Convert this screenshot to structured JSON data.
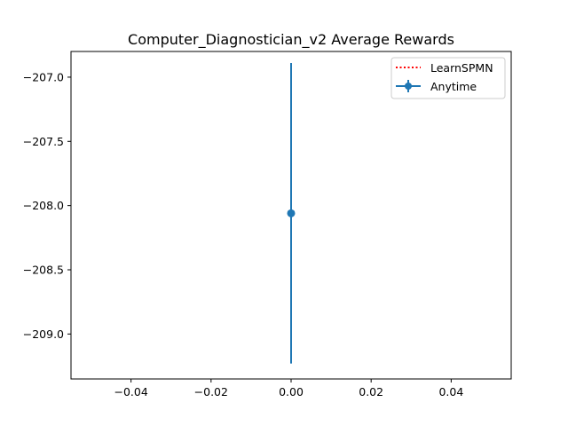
{
  "chart_data": {
    "type": "scatter",
    "title": "Computer_Diagnostician_v2 Average Rewards",
    "xlabel": "",
    "ylabel": "",
    "xlim": [
      -0.055,
      0.055
    ],
    "ylim": [
      -209.35,
      -206.8
    ],
    "x_ticks": [
      -0.04,
      -0.02,
      0.0,
      0.02,
      0.04
    ],
    "x_tick_labels": [
      "−0.04",
      "−0.02",
      "0.00",
      "0.02",
      "0.04"
    ],
    "y_ticks": [
      -207.0,
      -207.5,
      -208.0,
      -208.5,
      -209.0
    ],
    "y_tick_labels": [
      "−207.0",
      "−207.5",
      "−208.0",
      "−208.5",
      "−209.0"
    ],
    "grid": false,
    "legend_position": "top-right",
    "series": [
      {
        "name": "LearnSPMN",
        "style": "dotted-line",
        "color": "#ff0000",
        "x": [],
        "y": []
      },
      {
        "name": "Anytime",
        "style": "errorbar",
        "color": "#1f77b4",
        "x": [
          0.0
        ],
        "y": [
          -208.06
        ],
        "yerr": [
          1.17
        ]
      }
    ]
  }
}
